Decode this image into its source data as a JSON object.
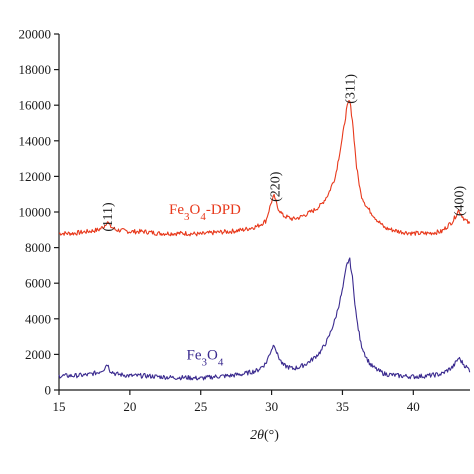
{
  "chart_data": {
    "type": "line",
    "xlabel": "2θ (°)",
    "xlabel_parts": {
      "var": "2θ",
      "unit": "(°)"
    },
    "xlim": [
      15,
      44
    ],
    "ylim": [
      0,
      20000
    ],
    "x_ticks": [
      15,
      20,
      25,
      30,
      35,
      40
    ],
    "y_ticks": [
      0,
      2000,
      4000,
      6000,
      8000,
      10000,
      12000,
      14000,
      16000,
      18000,
      20000
    ],
    "grid": false,
    "series": [
      {
        "name": "Fe3O4-DPD",
        "label_parts": {
          "base": "Fe",
          "sub1": "3",
          "mid": "O",
          "sub2": "4",
          "suffix": "-DPD"
        },
        "color": "#e8391c",
        "x": [
          15,
          16,
          17,
          17.8,
          18.2,
          18.4,
          18.6,
          19,
          20,
          21,
          22,
          23,
          24,
          25,
          26,
          27,
          28,
          29,
          29.6,
          30,
          30.2,
          30.4,
          30.8,
          31.5,
          32,
          32.5,
          33,
          33.5,
          34,
          34.5,
          35,
          35.3,
          35.5,
          35.7,
          36,
          36.3,
          36.7,
          37,
          37.5,
          38,
          39,
          40,
          41,
          42,
          42.8,
          43.2,
          43.6,
          44
        ],
        "values": [
          8800,
          8800,
          8900,
          9000,
          9200,
          9500,
          9200,
          9000,
          8900,
          8900,
          8800,
          8800,
          8800,
          8750,
          8850,
          8900,
          9000,
          9200,
          9500,
          10600,
          10900,
          10300,
          9800,
          9600,
          9700,
          9900,
          10100,
          10400,
          11000,
          12000,
          14200,
          15800,
          16300,
          15200,
          12500,
          11000,
          10300,
          10000,
          9500,
          9100,
          8900,
          8800,
          8800,
          8900,
          9500,
          10100,
          9600,
          9300
        ]
      },
      {
        "name": "Fe3O4",
        "label_parts": {
          "base": "Fe",
          "sub1": "3",
          "mid": "O",
          "sub2": "4",
          "suffix": ""
        },
        "color": "#3b2b8f",
        "x": [
          15,
          16,
          17,
          17.8,
          18.2,
          18.4,
          18.6,
          19,
          20,
          21,
          22,
          23,
          24,
          25,
          26,
          27,
          28,
          29,
          29.6,
          30,
          30.2,
          30.4,
          30.8,
          31.5,
          32,
          32.5,
          33,
          33.5,
          34,
          34.5,
          35,
          35.3,
          35.5,
          35.7,
          36,
          36.3,
          36.7,
          37,
          37.5,
          38,
          39,
          40,
          41,
          42,
          42.8,
          43.2,
          43.6,
          44
        ],
        "values": [
          800,
          800,
          850,
          1000,
          1200,
          1500,
          1100,
          900,
          800,
          800,
          750,
          700,
          700,
          650,
          750,
          800,
          900,
          1100,
          1500,
          2300,
          2600,
          2000,
          1400,
          1200,
          1300,
          1500,
          1800,
          2200,
          2900,
          4000,
          5600,
          7000,
          7400,
          6300,
          4000,
          2600,
          1800,
          1400,
          1100,
          900,
          800,
          750,
          800,
          900,
          1300,
          1800,
          1400,
          1100
        ]
      }
    ],
    "annotations": [
      {
        "label": "(111)",
        "x": 18.4,
        "y": 10000
      },
      {
        "label": "(220)",
        "x": 30.2,
        "y": 11700
      },
      {
        "label": "(311)",
        "x": 35.5,
        "y": 17200
      },
      {
        "label": "(400)",
        "x": 43.2,
        "y": 10900
      }
    ],
    "series_label_positions": [
      {
        "series": 0,
        "x": 25.3,
        "y": 9900
      },
      {
        "series": 1,
        "x": 25.3,
        "y": 1700
      }
    ]
  }
}
